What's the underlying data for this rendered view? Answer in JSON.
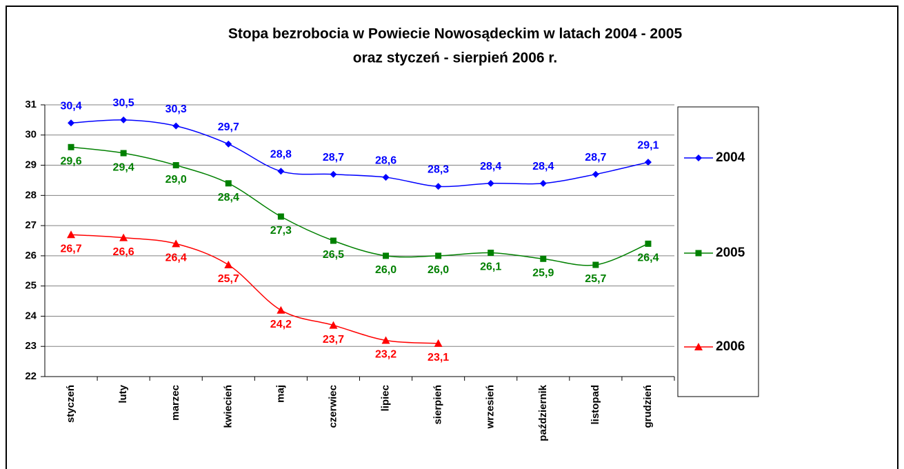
{
  "chart_data": {
    "type": "line",
    "title": [
      "Stopa bezrobocia w Powiecie Nowosądeckim w latach 2004 - 2005",
      "oraz styczeń - sierpień 2006 r."
    ],
    "categories": [
      "styczeń",
      "luty",
      "marzec",
      "kwiecień",
      "maj",
      "czerwiec",
      "lipiec",
      "sierpień",
      "wrzesień",
      "październik",
      "listopad",
      "grudzień"
    ],
    "series": [
      {
        "name": "2004",
        "color": "#0000ff",
        "marker": "diamond",
        "values": [
          30.4,
          30.5,
          30.3,
          29.7,
          28.8,
          28.7,
          28.6,
          28.3,
          28.4,
          28.4,
          28.7,
          29.1
        ],
        "value_labels": [
          "30,4",
          "30,5",
          "30,3",
          "29,7",
          "28,8",
          "28,7",
          "28,6",
          "28,3",
          "28,4",
          "28,4",
          "28,7",
          "29,1"
        ]
      },
      {
        "name": "2005",
        "color": "#008000",
        "marker": "square",
        "values": [
          29.6,
          29.4,
          29.0,
          28.4,
          27.3,
          26.5,
          26.0,
          26.0,
          26.1,
          25.9,
          25.7,
          26.4
        ],
        "value_labels": [
          "29,6",
          "29,4",
          "29,0",
          "28,4",
          "27,3",
          "26,5",
          "26,0",
          "26,0",
          "26,1",
          "25,9",
          "25,7",
          "26,4"
        ]
      },
      {
        "name": "2006",
        "color": "#ff0000",
        "marker": "triangle",
        "values": [
          26.7,
          26.6,
          26.4,
          25.7,
          24.2,
          23.7,
          23.2,
          23.1,
          null,
          null,
          null,
          null
        ],
        "value_labels": [
          "26,7",
          "26,6",
          "26,4",
          "25,7",
          "24,2",
          "23,7",
          "23,2",
          "23,1",
          null,
          null,
          null,
          null
        ]
      }
    ],
    "ylim": [
      22,
      31
    ],
    "yticks": [
      22,
      23,
      24,
      25,
      26,
      27,
      28,
      29,
      30,
      31
    ],
    "grid": true
  }
}
